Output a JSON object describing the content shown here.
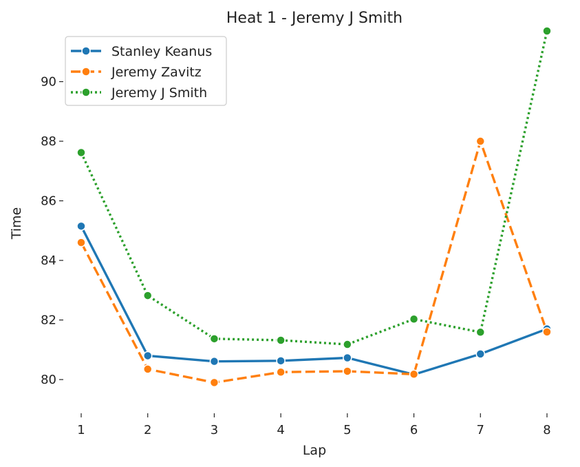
{
  "chart_data": {
    "type": "line",
    "title": "Heat 1 - Jeremy J Smith",
    "xlabel": "Lap",
    "ylabel": "Time",
    "x": [
      1,
      2,
      3,
      4,
      5,
      6,
      7,
      8
    ],
    "xticks": [
      "1",
      "2",
      "3",
      "4",
      "5",
      "6",
      "7",
      "8"
    ],
    "yticks": [
      "80",
      "82",
      "84",
      "86",
      "88",
      "90"
    ],
    "ylim": [
      79.1,
      91.7
    ],
    "grid": false,
    "legend_position": "top-left",
    "series": [
      {
        "name": "Stanley Keanus",
        "color": "#1f77b4",
        "line_style": "solid",
        "values": [
          85.15,
          80.8,
          80.61,
          80.63,
          80.73,
          80.17,
          80.86,
          81.7
        ]
      },
      {
        "name": "Jeremy Zavitz",
        "color": "#ff7f0e",
        "line_style": "dashed",
        "values": [
          84.6,
          80.35,
          79.9,
          80.25,
          80.28,
          80.18,
          88.0,
          81.6
        ]
      },
      {
        "name": "Jeremy J Smith",
        "color": "#2ca02c",
        "line_style": "dotted",
        "values": [
          87.62,
          82.82,
          81.37,
          81.32,
          81.18,
          82.03,
          81.59,
          91.7
        ]
      }
    ]
  }
}
